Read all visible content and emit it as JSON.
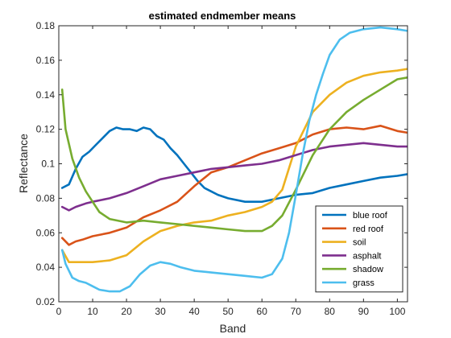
{
  "chart_data": {
    "type": "line",
    "title": "estimated endmember means",
    "xlabel": "Band",
    "ylabel": "Reflectance",
    "xlim": [
      0,
      103
    ],
    "ylim": [
      0.02,
      0.18
    ],
    "xticks": [
      0,
      10,
      20,
      30,
      40,
      50,
      60,
      70,
      80,
      90,
      100
    ],
    "xtick_labels": [
      "0",
      "10",
      "20",
      "30",
      "40",
      "50",
      "60",
      "70",
      "80",
      "90",
      "100"
    ],
    "yticks": [
      0.02,
      0.04,
      0.06,
      0.08,
      0.1,
      0.12,
      0.14,
      0.16,
      0.18
    ],
    "ytick_labels": [
      "0.02",
      "0.04",
      "0.06",
      "0.08",
      "0.1",
      "0.12",
      "0.14",
      "0.16",
      "0.18"
    ],
    "grid": false,
    "legend_position": "bottom-right",
    "series": [
      {
        "name": "blue roof",
        "color": "#0072BD",
        "x": [
          1,
          3,
          5,
          7,
          9,
          11,
          13,
          15,
          17,
          19,
          21,
          23,
          25,
          27,
          29,
          31,
          33,
          35,
          37,
          39,
          41,
          43,
          45,
          47,
          50,
          55,
          60,
          65,
          70,
          75,
          80,
          85,
          90,
          95,
          100,
          103
        ],
        "y": [
          0.086,
          0.088,
          0.097,
          0.104,
          0.107,
          0.111,
          0.115,
          0.119,
          0.121,
          0.12,
          0.12,
          0.119,
          0.121,
          0.12,
          0.116,
          0.114,
          0.109,
          0.105,
          0.1,
          0.095,
          0.09,
          0.086,
          0.084,
          0.082,
          0.08,
          0.078,
          0.078,
          0.08,
          0.082,
          0.083,
          0.086,
          0.088,
          0.09,
          0.092,
          0.093,
          0.094
        ]
      },
      {
        "name": "red roof",
        "color": "#D95319",
        "x": [
          1,
          3,
          5,
          7,
          10,
          15,
          20,
          25,
          30,
          35,
          40,
          45,
          50,
          55,
          60,
          65,
          70,
          75,
          80,
          85,
          90,
          95,
          100,
          103
        ],
        "y": [
          0.057,
          0.053,
          0.055,
          0.056,
          0.058,
          0.06,
          0.063,
          0.069,
          0.073,
          0.078,
          0.087,
          0.095,
          0.098,
          0.102,
          0.106,
          0.109,
          0.112,
          0.117,
          0.12,
          0.121,
          0.12,
          0.122,
          0.119,
          0.118
        ]
      },
      {
        "name": "soil",
        "color": "#EDB120",
        "x": [
          1,
          3,
          5,
          10,
          15,
          20,
          25,
          30,
          35,
          40,
          45,
          50,
          55,
          60,
          63,
          66,
          70,
          75,
          80,
          85,
          90,
          95,
          100,
          103
        ],
        "y": [
          0.05,
          0.043,
          0.043,
          0.043,
          0.044,
          0.047,
          0.055,
          0.061,
          0.064,
          0.066,
          0.067,
          0.07,
          0.072,
          0.075,
          0.078,
          0.085,
          0.11,
          0.13,
          0.14,
          0.147,
          0.151,
          0.153,
          0.154,
          0.155
        ]
      },
      {
        "name": "asphalt",
        "color": "#7E2F8E",
        "x": [
          1,
          3,
          5,
          8,
          10,
          15,
          20,
          25,
          30,
          35,
          40,
          45,
          50,
          55,
          60,
          65,
          70,
          75,
          80,
          85,
          90,
          95,
          100,
          103
        ],
        "y": [
          0.075,
          0.073,
          0.075,
          0.077,
          0.078,
          0.08,
          0.083,
          0.087,
          0.091,
          0.093,
          0.095,
          0.097,
          0.098,
          0.099,
          0.1,
          0.102,
          0.105,
          0.108,
          0.11,
          0.111,
          0.112,
          0.111,
          0.11,
          0.11
        ]
      },
      {
        "name": "shadow",
        "color": "#77AC30",
        "x": [
          1,
          2,
          4,
          6,
          8,
          10,
          12,
          15,
          20,
          25,
          30,
          35,
          40,
          45,
          50,
          55,
          60,
          63,
          66,
          70,
          75,
          80,
          85,
          90,
          95,
          100,
          103
        ],
        "y": [
          0.143,
          0.12,
          0.103,
          0.092,
          0.084,
          0.078,
          0.072,
          0.068,
          0.066,
          0.067,
          0.066,
          0.065,
          0.064,
          0.063,
          0.062,
          0.061,
          0.061,
          0.064,
          0.07,
          0.085,
          0.105,
          0.12,
          0.13,
          0.137,
          0.143,
          0.149,
          0.15
        ]
      },
      {
        "name": "grass",
        "color": "#4DBEEE",
        "x": [
          1,
          2,
          4,
          6,
          8,
          10,
          12,
          15,
          18,
          21,
          24,
          27,
          30,
          33,
          36,
          40,
          45,
          50,
          55,
          60,
          63,
          66,
          68,
          70,
          72,
          74,
          76,
          78,
          80,
          83,
          86,
          90,
          95,
          100,
          103
        ],
        "y": [
          0.05,
          0.042,
          0.034,
          0.032,
          0.031,
          0.029,
          0.027,
          0.026,
          0.026,
          0.029,
          0.036,
          0.041,
          0.043,
          0.042,
          0.04,
          0.038,
          0.037,
          0.036,
          0.035,
          0.034,
          0.036,
          0.045,
          0.06,
          0.082,
          0.105,
          0.125,
          0.14,
          0.152,
          0.163,
          0.172,
          0.176,
          0.178,
          0.179,
          0.178,
          0.177
        ]
      }
    ]
  }
}
